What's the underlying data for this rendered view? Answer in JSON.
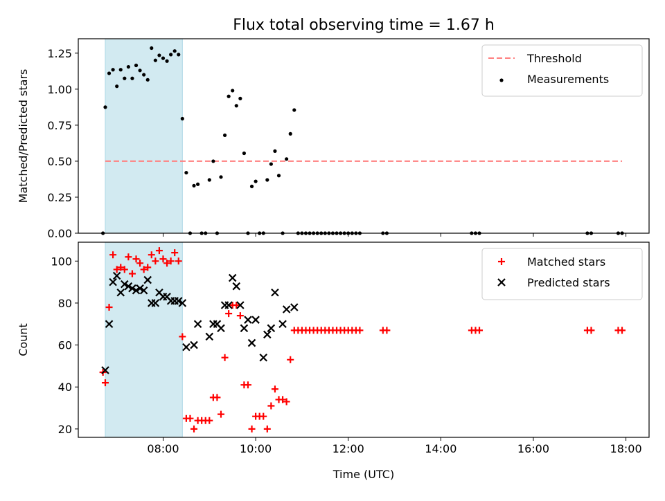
{
  "figure": {
    "title": "Flux total observing time = 1.67 h",
    "colors": {
      "threshold": "#ff7f7f",
      "measurement": "#000000",
      "matched": "#ff0000",
      "predicted": "#000000",
      "span": "#add8e6"
    }
  },
  "chart_data": [
    {
      "type": "scatter",
      "panel": "top",
      "title": "Flux total observing time = 1.67 h",
      "xlabel": "",
      "ylabel": "Matched/Predicted stars",
      "ylim": [
        0,
        1.35
      ],
      "xlim": [
        "06:10",
        "18:30"
      ],
      "yticks": [
        "0.00",
        "0.25",
        "0.50",
        "0.75",
        "1.00",
        "1.25"
      ],
      "legend_position": "top-right",
      "shaded_span": [
        "06:45",
        "08:25"
      ],
      "threshold": {
        "name": "Threshold",
        "y": 0.5,
        "x": [
          "06:45",
          "17:55"
        ]
      },
      "series": [
        {
          "name": "Measurements",
          "points": [
            [
              "06:42",
              0.0
            ],
            [
              "06:45",
              0.875
            ],
            [
              "06:50",
              1.11
            ],
            [
              "06:55",
              1.135
            ],
            [
              "07:00",
              1.02
            ],
            [
              "07:05",
              1.135
            ],
            [
              "07:10",
              1.075
            ],
            [
              "07:15",
              1.155
            ],
            [
              "07:20",
              1.075
            ],
            [
              "07:25",
              1.165
            ],
            [
              "07:30",
              1.13
            ],
            [
              "07:35",
              1.1
            ],
            [
              "07:40",
              1.065
            ],
            [
              "07:45",
              1.285
            ],
            [
              "07:50",
              1.2
            ],
            [
              "07:55",
              1.235
            ],
            [
              "08:00",
              1.215
            ],
            [
              "08:05",
              1.195
            ],
            [
              "08:10",
              1.24
            ],
            [
              "08:15",
              1.265
            ],
            [
              "08:20",
              1.24
            ],
            [
              "08:25",
              0.795
            ],
            [
              "08:30",
              0.42
            ],
            [
              "08:35",
              0.0
            ],
            [
              "08:40",
              0.33
            ],
            [
              "08:45",
              0.34
            ],
            [
              "08:50",
              0.0
            ],
            [
              "08:55",
              0.0
            ],
            [
              "09:00",
              0.37
            ],
            [
              "09:05",
              0.5
            ],
            [
              "09:10",
              0.0
            ],
            [
              "09:15",
              0.39
            ],
            [
              "09:20",
              0.68
            ],
            [
              "09:25",
              0.95
            ],
            [
              "09:30",
              0.99
            ],
            [
              "09:35",
              0.885
            ],
            [
              "09:40",
              0.935
            ],
            [
              "09:45",
              0.555
            ],
            [
              "09:50",
              0.0
            ],
            [
              "09:55",
              0.325
            ],
            [
              "10:00",
              0.36
            ],
            [
              "10:05",
              0.0
            ],
            [
              "10:10",
              0.0
            ],
            [
              "10:15",
              0.37
            ],
            [
              "10:20",
              0.48
            ],
            [
              "10:25",
              0.57
            ],
            [
              "10:30",
              0.4
            ],
            [
              "10:35",
              0.0
            ],
            [
              "10:40",
              0.515
            ],
            [
              "10:45",
              0.69
            ],
            [
              "10:50",
              0.855
            ],
            [
              "10:55",
              0.0
            ],
            [
              "11:00",
              0.0
            ],
            [
              "11:05",
              0.0
            ],
            [
              "11:10",
              0.0
            ],
            [
              "11:15",
              0.0
            ],
            [
              "11:20",
              0.0
            ],
            [
              "11:25",
              0.0
            ],
            [
              "11:30",
              0.0
            ],
            [
              "11:35",
              0.0
            ],
            [
              "11:40",
              0.0
            ],
            [
              "11:45",
              0.0
            ],
            [
              "11:50",
              0.0
            ],
            [
              "11:55",
              0.0
            ],
            [
              "12:00",
              0.0
            ],
            [
              "12:05",
              0.0
            ],
            [
              "12:10",
              0.0
            ],
            [
              "12:15",
              0.0
            ],
            [
              "12:45",
              0.0
            ],
            [
              "12:50",
              0.0
            ],
            [
              "14:40",
              0.0
            ],
            [
              "14:45",
              0.0
            ],
            [
              "14:50",
              0.0
            ],
            [
              "17:10",
              0.0
            ],
            [
              "17:15",
              0.0
            ],
            [
              "17:50",
              0.0
            ],
            [
              "17:55",
              0.0
            ]
          ]
        }
      ]
    },
    {
      "type": "scatter",
      "panel": "bottom",
      "xlabel": "Time (UTC)",
      "ylabel": "Count",
      "ylim": [
        16,
        109
      ],
      "xlim": [
        "06:10",
        "18:30"
      ],
      "xticks": [
        "08:00",
        "10:00",
        "12:00",
        "14:00",
        "16:00",
        "18:00"
      ],
      "yticks": [
        "20",
        "40",
        "60",
        "80",
        "100"
      ],
      "legend_position": "top-right",
      "shaded_span": [
        "06:45",
        "08:25"
      ],
      "series": [
        {
          "name": "Matched stars",
          "marker": "+",
          "points": [
            [
              "06:42",
              47
            ],
            [
              "06:45",
              42
            ],
            [
              "06:50",
              78
            ],
            [
              "06:55",
              103
            ],
            [
              "07:00",
              96
            ],
            [
              "07:05",
              97
            ],
            [
              "07:10",
              96
            ],
            [
              "07:15",
              102
            ],
            [
              "07:20",
              94
            ],
            [
              "07:25",
              101
            ],
            [
              "07:30",
              99
            ],
            [
              "07:35",
              96
            ],
            [
              "07:40",
              97
            ],
            [
              "07:45",
              103
            ],
            [
              "07:50",
              100
            ],
            [
              "07:55",
              105
            ],
            [
              "08:00",
              101
            ],
            [
              "08:05",
              99
            ],
            [
              "08:10",
              100
            ],
            [
              "08:15",
              104
            ],
            [
              "08:20",
              100
            ],
            [
              "08:25",
              64
            ],
            [
              "08:30",
              25
            ],
            [
              "08:35",
              25
            ],
            [
              "08:40",
              20
            ],
            [
              "08:45",
              24
            ],
            [
              "08:50",
              24
            ],
            [
              "08:55",
              24
            ],
            [
              "09:00",
              24
            ],
            [
              "09:05",
              35
            ],
            [
              "09:10",
              35
            ],
            [
              "09:15",
              27
            ],
            [
              "09:20",
              54
            ],
            [
              "09:25",
              75
            ],
            [
              "09:30",
              79
            ],
            [
              "09:35",
              79
            ],
            [
              "09:40",
              74
            ],
            [
              "09:45",
              41
            ],
            [
              "09:50",
              41
            ],
            [
              "09:55",
              20
            ],
            [
              "10:00",
              26
            ],
            [
              "10:05",
              26
            ],
            [
              "10:10",
              26
            ],
            [
              "10:15",
              20
            ],
            [
              "10:20",
              31
            ],
            [
              "10:25",
              39
            ],
            [
              "10:30",
              34
            ],
            [
              "10:35",
              34
            ],
            [
              "10:40",
              33
            ],
            [
              "10:45",
              53
            ],
            [
              "10:50",
              67
            ],
            [
              "10:55",
              67
            ],
            [
              "11:00",
              67
            ],
            [
              "11:05",
              67
            ],
            [
              "11:10",
              67
            ],
            [
              "11:15",
              67
            ],
            [
              "11:20",
              67
            ],
            [
              "11:25",
              67
            ],
            [
              "11:30",
              67
            ],
            [
              "11:35",
              67
            ],
            [
              "11:40",
              67
            ],
            [
              "11:45",
              67
            ],
            [
              "11:50",
              67
            ],
            [
              "11:55",
              67
            ],
            [
              "12:00",
              67
            ],
            [
              "12:05",
              67
            ],
            [
              "12:10",
              67
            ],
            [
              "12:15",
              67
            ],
            [
              "12:45",
              67
            ],
            [
              "12:50",
              67
            ],
            [
              "14:40",
              67
            ],
            [
              "14:45",
              67
            ],
            [
              "14:50",
              67
            ],
            [
              "17:10",
              67
            ],
            [
              "17:15",
              67
            ],
            [
              "17:50",
              67
            ],
            [
              "17:55",
              67
            ]
          ]
        },
        {
          "name": "Predicted stars",
          "marker": "x",
          "points": [
            [
              "06:45",
              48
            ],
            [
              "06:50",
              70
            ],
            [
              "06:55",
              90
            ],
            [
              "07:00",
              93
            ],
            [
              "07:05",
              85
            ],
            [
              "07:10",
              89
            ],
            [
              "07:15",
              88
            ],
            [
              "07:20",
              87
            ],
            [
              "07:25",
              86
            ],
            [
              "07:30",
              87
            ],
            [
              "07:35",
              86
            ],
            [
              "07:40",
              91
            ],
            [
              "07:45",
              80
            ],
            [
              "07:50",
              80
            ],
            [
              "07:55",
              85
            ],
            [
              "08:00",
              83
            ],
            [
              "08:05",
              83
            ],
            [
              "08:10",
              81
            ],
            [
              "08:15",
              81
            ],
            [
              "08:20",
              81
            ],
            [
              "08:25",
              80
            ],
            [
              "08:30",
              59
            ],
            [
              "08:40",
              60
            ],
            [
              "08:45",
              70
            ],
            [
              "09:00",
              64
            ],
            [
              "09:05",
              70
            ],
            [
              "09:10",
              70
            ],
            [
              "09:15",
              68
            ],
            [
              "09:20",
              79
            ],
            [
              "09:25",
              79
            ],
            [
              "09:30",
              92
            ],
            [
              "09:35",
              88
            ],
            [
              "09:40",
              79
            ],
            [
              "09:45",
              68
            ],
            [
              "09:50",
              72
            ],
            [
              "09:55",
              61
            ],
            [
              "10:00",
              72
            ],
            [
              "10:10",
              54
            ],
            [
              "10:15",
              65
            ],
            [
              "10:20",
              68
            ],
            [
              "10:25",
              85
            ],
            [
              "10:35",
              70
            ],
            [
              "10:40",
              77
            ],
            [
              "10:50",
              78
            ]
          ]
        }
      ]
    }
  ]
}
